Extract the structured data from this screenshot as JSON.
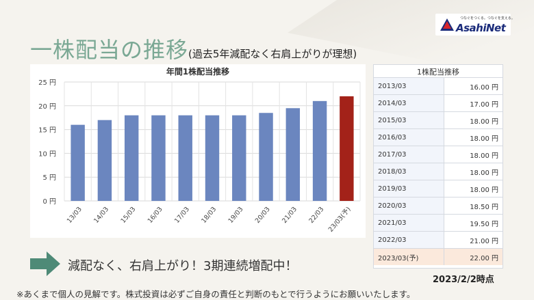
{
  "logo": {
    "tagline": "つなぐをつくる。つなぐを支える。",
    "name": "AsahiNet",
    "colors": {
      "red": "#d8262c",
      "blue": "#1a2b7a"
    }
  },
  "headline": {
    "main": "一株配当の推移",
    "sub": "(過去5年減配なく右肩上がりが理想)"
  },
  "chart_data": {
    "type": "bar",
    "title": "年間1株配当推移",
    "categories": [
      "13/03",
      "14/03",
      "15/03",
      "16/03",
      "17/03",
      "18/03",
      "19/03",
      "20/03",
      "21/03",
      "22/03",
      "23/03(予)"
    ],
    "values": [
      16.0,
      17.0,
      18.0,
      18.0,
      18.0,
      18.0,
      18.0,
      18.5,
      19.5,
      21.0,
      22.0
    ],
    "ylim": [
      0,
      25
    ],
    "yticks": [
      0,
      5,
      10,
      15,
      20,
      25
    ],
    "ytick_labels": [
      "0 円",
      "5 円",
      "10 円",
      "15 円",
      "20 円",
      "25 円"
    ],
    "grid": true,
    "colors": {
      "actual": "#6b86bf",
      "forecast": "#a32219"
    },
    "forecast_index": 10
  },
  "table": {
    "title": "1株配当推移",
    "rows": [
      {
        "year": "2013/03",
        "value": "16.00 円"
      },
      {
        "year": "2014/03",
        "value": "17.00 円"
      },
      {
        "year": "2015/03",
        "value": "18.00 円"
      },
      {
        "year": "2016/03",
        "value": "18.00 円"
      },
      {
        "year": "2017/03",
        "value": "18.00 円"
      },
      {
        "year": "2018/03",
        "value": "18.00 円"
      },
      {
        "year": "2019/03",
        "value": "18.00 円"
      },
      {
        "year": "2020/03",
        "value": "18.50 円"
      },
      {
        "year": "2021/03",
        "value": "19.50 円"
      },
      {
        "year": "2022/03",
        "value": "21.00 円"
      },
      {
        "year": "2023/03(予)",
        "value": "22.00 円",
        "forecast": true
      }
    ]
  },
  "message": "減配なく、右肩上がり！3期連続増配中！",
  "asof": "2023/2/2時点",
  "disclaimer": "※あくまで個人の見解です。株式投資は必ずご自身の責任と判断のもとで行うようにお願いいたします。",
  "arrow_color": "#4e8a77"
}
